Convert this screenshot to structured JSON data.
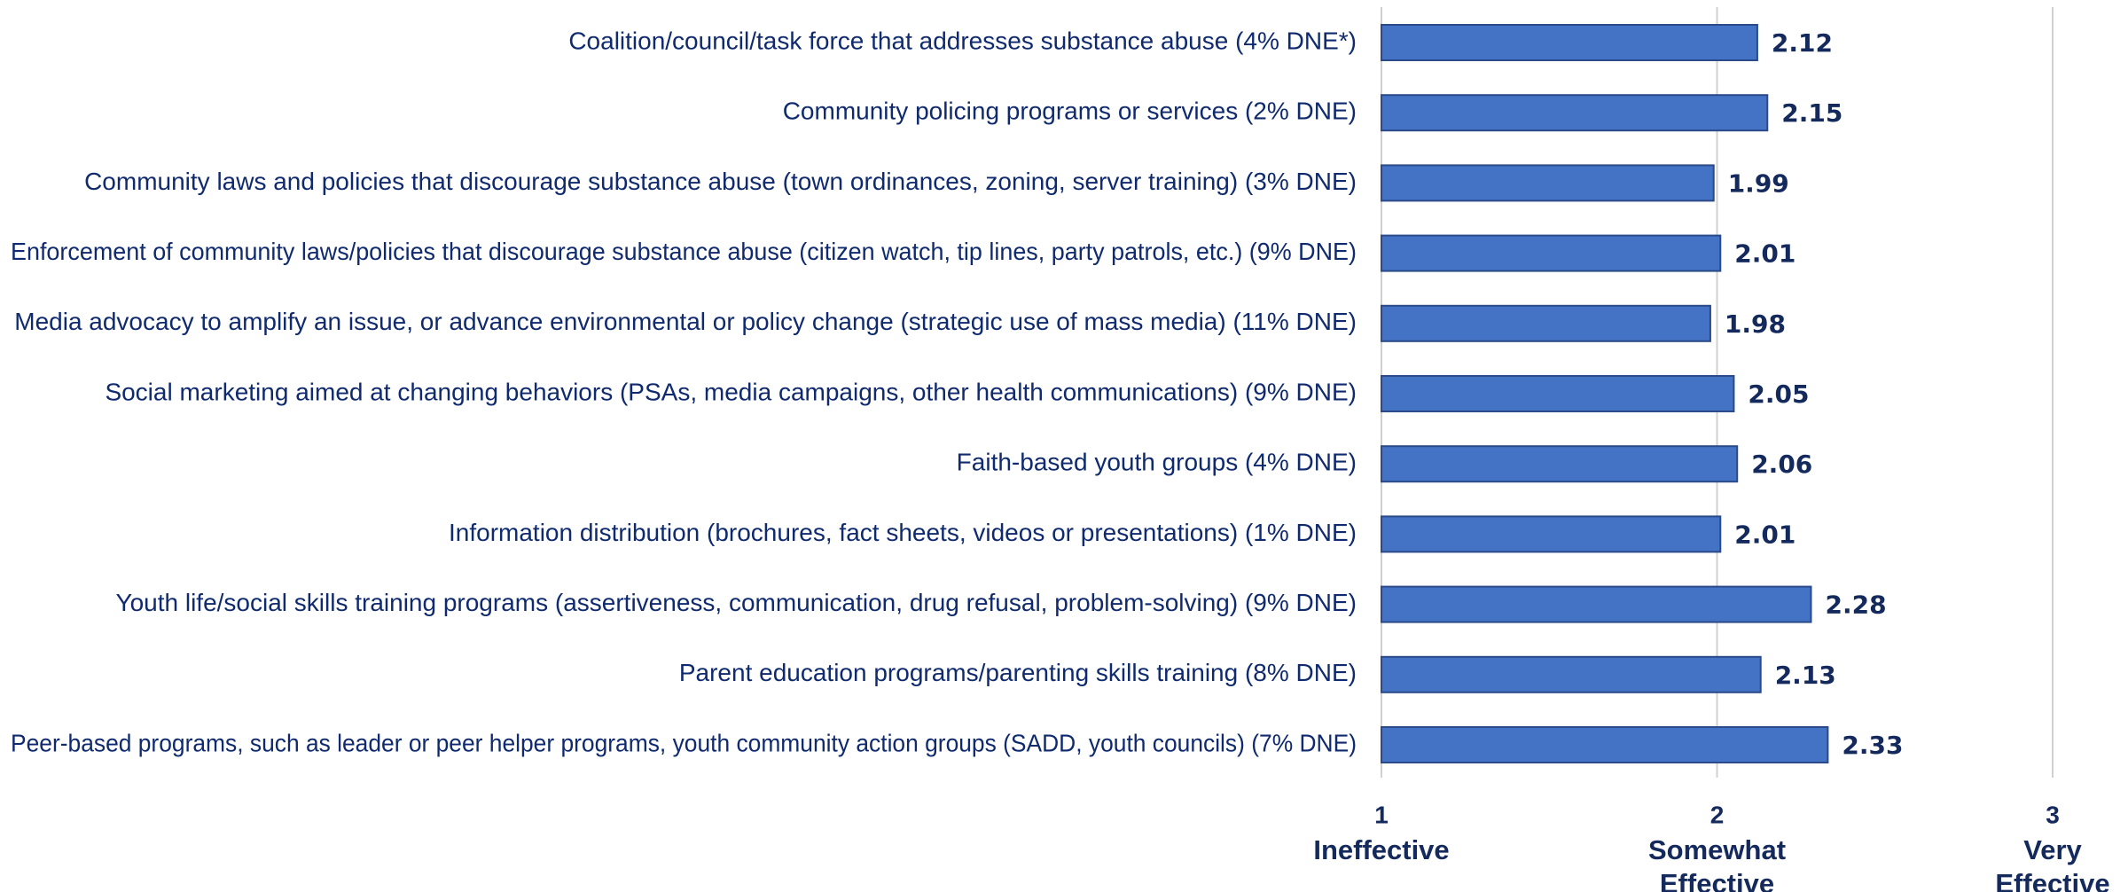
{
  "chart_data": {
    "type": "barh",
    "categories": [
      "Coalition/council/task force that addresses substance abuse (4% DNE*)",
      "Community policing programs or services (2% DNE)",
      "Community laws and policies that discourage substance abuse (town ordinances, zoning, server training) (3% DNE)",
      "Enforcement of community laws/policies that discourage substance abuse (citizen watch, tip lines, party patrols, etc.) (9% DNE)",
      "Media advocacy to amplify an issue, or advance environmental or policy change (strategic use of mass media) (11% DNE)",
      "Social marketing aimed at changing behaviors (PSAs, media campaigns, other health communications) (9% DNE)",
      "Faith-based youth groups (4% DNE)",
      "Information distribution (brochures, fact sheets, videos or presentations) (1% DNE)",
      "Youth life/social skills training programs (assertiveness, communication, drug refusal, problem-solving) (9% DNE)",
      "Parent education programs/parenting skills training (8% DNE)",
      "Peer-based programs, such as leader or peer helper programs, youth community action groups (SADD, youth councils) (7% DNE)"
    ],
    "values": [
      2.12,
      2.15,
      1.99,
      2.01,
      1.98,
      2.05,
      2.06,
      2.01,
      2.28,
      2.13,
      2.33
    ],
    "color": "#4472c4",
    "xlim": [
      1,
      3
    ],
    "xticks": [
      1,
      2,
      3
    ],
    "xtick_descriptions": [
      "Ineffective",
      "Somewhat Effective",
      "Very Effective"
    ],
    "grid": true
  }
}
